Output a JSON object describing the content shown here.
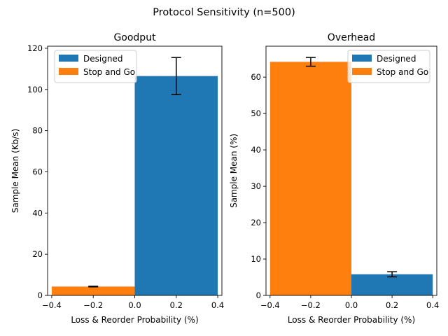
{
  "figure": {
    "suptitle": "Protocol Sensitivity (n=500)"
  },
  "chart_data": [
    {
      "type": "bar",
      "title": "Goodput",
      "xlabel": "Loss & Reorder Probability (%)",
      "ylabel": "Sample Mean (Kb/s)",
      "xlim": [
        -0.42,
        0.42
      ],
      "ylim": [
        0,
        121
      ],
      "xticks": [
        -0.4,
        -0.2,
        0.0,
        0.2,
        0.4
      ],
      "xtick_labels": [
        "−0.4",
        "−0.2",
        "0.0",
        "0.2",
        "0.4"
      ],
      "yticks": [
        0,
        20,
        40,
        60,
        80,
        100,
        120
      ],
      "ytick_labels": [
        "0",
        "20",
        "40",
        "60",
        "80",
        "100",
        "120"
      ],
      "legend": {
        "position": "upper left"
      },
      "series": [
        {
          "name": "Designed",
          "color": "#1f77b4",
          "x": [
            0.2
          ],
          "values": [
            106.5
          ],
          "error": [
            9.0
          ],
          "bar_width": 0.4
        },
        {
          "name": "Stop and Go",
          "color": "#ff7f0e",
          "x": [
            -0.2
          ],
          "values": [
            4.3
          ],
          "error": [
            0.15
          ],
          "bar_width": 0.4
        }
      ]
    },
    {
      "type": "bar",
      "title": "Overhead",
      "xlabel": "Loss & Reorder Probability (%)",
      "ylabel": "Sample Mean (%)",
      "xlim": [
        -0.42,
        0.42
      ],
      "ylim": [
        0,
        68.5
      ],
      "xticks": [
        -0.4,
        -0.2,
        0.0,
        0.2,
        0.4
      ],
      "xtick_labels": [
        "−0.4",
        "−0.2",
        "0.0",
        "0.2",
        "0.4"
      ],
      "yticks": [
        0,
        10,
        20,
        30,
        40,
        50,
        60
      ],
      "ytick_labels": [
        "0",
        "10",
        "20",
        "30",
        "40",
        "50",
        "60"
      ],
      "legend": {
        "position": "upper right"
      },
      "series": [
        {
          "name": "Designed",
          "color": "#1f77b4",
          "x": [
            0.2
          ],
          "values": [
            5.8
          ],
          "error": [
            0.7
          ],
          "bar_width": 0.4
        },
        {
          "name": "Stop and Go",
          "color": "#ff7f0e",
          "x": [
            -0.2
          ],
          "values": [
            64.2
          ],
          "error": [
            1.2
          ],
          "bar_width": 0.4
        }
      ]
    }
  ]
}
